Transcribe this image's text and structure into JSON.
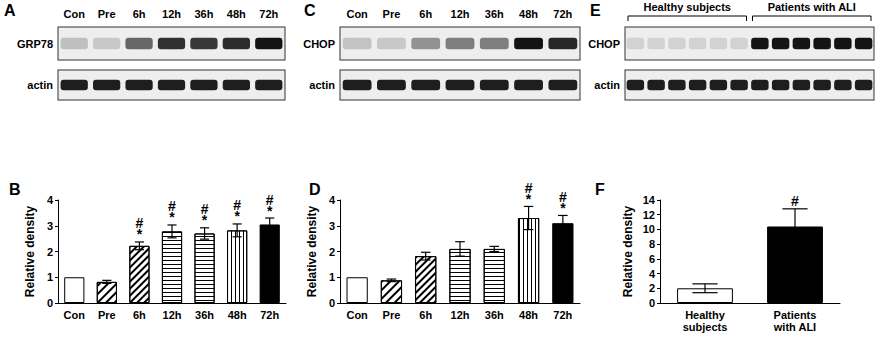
{
  "figure": {
    "blots": [
      {
        "title": "A",
        "lanes": [
          "Con",
          "Pre",
          "6h",
          "12h",
          "36h",
          "48h",
          "72h"
        ],
        "rows": [
          "GRP78",
          "actin"
        ]
      },
      {
        "title": "C",
        "lanes": [
          "Con",
          "Pre",
          "6h",
          "12h",
          "36h",
          "48h",
          "72h"
        ],
        "rows": [
          "CHOP",
          "actin"
        ]
      },
      {
        "title": "E",
        "groups": [
          {
            "label": "Healthy subjects",
            "lanes": 6
          },
          {
            "label": "Patients with ALI",
            "lanes": 6
          }
        ],
        "rows": [
          "CHOP",
          "actin"
        ]
      }
    ]
  },
  "chart_data": [
    {
      "type": "bar",
      "title": "B",
      "ylabel": "Relative density",
      "categories": [
        "Con",
        "Pre",
        "6h",
        "12h",
        "36h",
        "48h",
        "72h"
      ],
      "values": [
        1,
        0.82,
        2.22,
        2.78,
        2.7,
        2.82,
        3.05
      ],
      "errors": [
        null,
        0.06,
        0.15,
        0.25,
        0.22,
        0.25,
        0.25
      ],
      "annotations": [
        null,
        null,
        [
          "#",
          "*"
        ],
        [
          "#",
          "*"
        ],
        [
          "#",
          "*"
        ],
        [
          "#",
          "*"
        ],
        [
          "#",
          "*"
        ]
      ],
      "ylim": [
        0,
        4
      ],
      "yticks": [
        0,
        1,
        2,
        3,
        4
      ],
      "grid": false,
      "color": "#000000"
    },
    {
      "type": "bar",
      "title": "D",
      "ylabel": "Relative density",
      "categories": [
        "Con",
        "Pre",
        "6h",
        "12h",
        "36h",
        "48h",
        "72h"
      ],
      "values": [
        1,
        0.88,
        1.82,
        2.1,
        2.1,
        3.3,
        3.1
      ],
      "errors": [
        null,
        0.05,
        0.15,
        0.28,
        0.1,
        0.45,
        0.3
      ],
      "annotations": [
        null,
        null,
        null,
        null,
        null,
        [
          "#",
          "*"
        ],
        [
          "#",
          "*"
        ]
      ],
      "ylim": [
        0,
        4
      ],
      "yticks": [
        0,
        1,
        2,
        3,
        4
      ],
      "grid": false,
      "color": "#000000"
    },
    {
      "type": "bar",
      "title": "F",
      "ylabel": "Relative density",
      "categories": [
        "Healthy\nsubjects",
        "Patients\nwith ALI"
      ],
      "values": [
        2.0,
        10.4
      ],
      "errors": [
        0.6,
        2.4
      ],
      "annotations": [
        null,
        [
          "#"
        ]
      ],
      "ylim": [
        0,
        14
      ],
      "yticks": [
        0,
        2,
        4,
        6,
        8,
        10,
        12,
        14
      ],
      "grid": false,
      "color": "#000000"
    }
  ]
}
